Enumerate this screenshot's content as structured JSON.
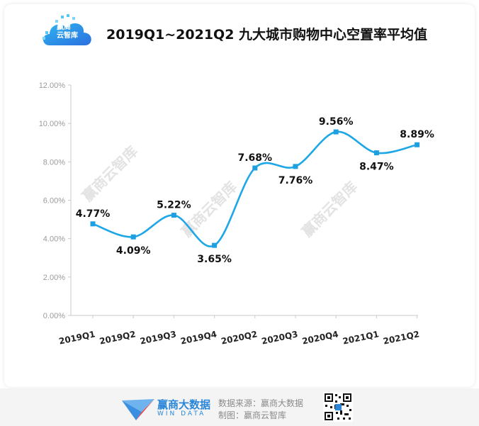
{
  "header": {
    "logo_text": "赢商\n云智库",
    "title": "2019Q1~2021Q2 九大城市购物中心空置率平均值",
    "logo_icon": "cloud-logo-icon"
  },
  "colors": {
    "line": "#1ea7e6",
    "marker": "#1e9fe0",
    "axis": "#c8c8c8",
    "tick_text": "#9a9a9a",
    "label_text": "#111111"
  },
  "chart_data": {
    "type": "line",
    "title": "2019Q1~2021Q2 九大城市购物中心空置率平均值",
    "xlabel": "",
    "ylabel": "",
    "categories": [
      "2019Q1",
      "2019Q2",
      "2019Q3",
      "2019Q4",
      "2020Q2",
      "2020Q3",
      "2020Q4",
      "2021Q1",
      "2021Q2"
    ],
    "series": [
      {
        "values": [
          4.77,
          4.09,
          5.22,
          3.65,
          7.68,
          7.76,
          9.56,
          8.47,
          8.89
        ],
        "labels": [
          "4.77%",
          "4.09%",
          "5.22%",
          "3.65%",
          "7.68%",
          "7.76%",
          "9.56%",
          "8.47%",
          "8.89%"
        ]
      }
    ],
    "ylim": [
      0,
      12
    ],
    "yticks": [
      0,
      2,
      4,
      6,
      8,
      10,
      12
    ],
    "ytick_labels": [
      "0.00%",
      "2.00%",
      "4.00%",
      "6.00%",
      "8.00%",
      "10.00%",
      "12.00%"
    ],
    "grid": false,
    "legend": "none"
  },
  "watermark": "赢商云智库",
  "footer": {
    "brand_cn": "赢商大数据",
    "brand_en": "WIN DATA",
    "source": "数据来源：赢商大数据",
    "maker": "制图：赢商云智库",
    "brand_icon": "win-data-logo-icon",
    "qr_icon": "qr-code-icon"
  }
}
